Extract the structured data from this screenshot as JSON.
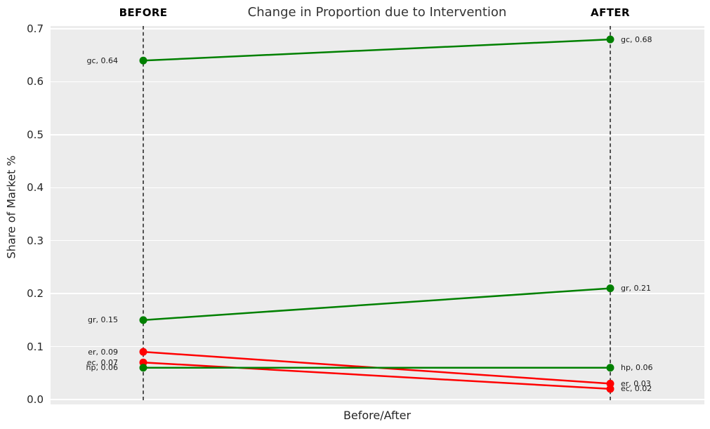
{
  "chart_data": {
    "type": "line",
    "variant": "slope-chart",
    "title": "Change in Proportion due to Intervention",
    "xlabel": "Before/After",
    "ylabel": "Share of Market %",
    "columns": [
      {
        "key": "before",
        "label": "BEFORE"
      },
      {
        "key": "after",
        "label": "AFTER"
      }
    ],
    "ylim": [
      0.0,
      0.7
    ],
    "yticks": [
      {
        "value": 0.7,
        "label": "0.7"
      },
      {
        "value": 0.6,
        "label": "0.6"
      },
      {
        "value": 0.5,
        "label": "0.5"
      },
      {
        "value": 0.4,
        "label": "0.4"
      },
      {
        "value": 0.3,
        "label": "0.3"
      },
      {
        "value": 0.2,
        "label": "0.2"
      },
      {
        "value": 0.1,
        "label": "0.1"
      },
      {
        "value": 0.0,
        "label": "0.0"
      }
    ],
    "grid": {
      "horizontal": true,
      "color": "#ffffff"
    },
    "plot_background": "#ececec",
    "guide_lines": {
      "style": "dashed",
      "color": "#000000"
    },
    "colors": {
      "increase": "#008000",
      "decrease": "#ff0000"
    },
    "legend_position": "none",
    "series": [
      {
        "name": "gc",
        "direction": "increase",
        "color": "#008000",
        "before": 0.64,
        "after": 0.68,
        "label_before": "gc, 0.64",
        "label_after": "gc, 0.68"
      },
      {
        "name": "gr",
        "direction": "increase",
        "color": "#008000",
        "before": 0.15,
        "after": 0.21,
        "label_before": "gr, 0.15",
        "label_after": "gr, 0.21"
      },
      {
        "name": "er",
        "direction": "decrease",
        "color": "#ff0000",
        "before": 0.09,
        "after": 0.03,
        "label_before": "er, 0.09",
        "label_after": "er, 0.03"
      },
      {
        "name": "ec",
        "direction": "decrease",
        "color": "#ff0000",
        "before": 0.07,
        "after": 0.02,
        "label_before": "ec, 0.07",
        "label_after": "ec, 0.02"
      },
      {
        "name": "hp",
        "direction": "same",
        "color": "#008000",
        "before": 0.06,
        "after": 0.06,
        "label_before": "hp, 0.06",
        "label_after": "hp, 0.06"
      }
    ]
  }
}
